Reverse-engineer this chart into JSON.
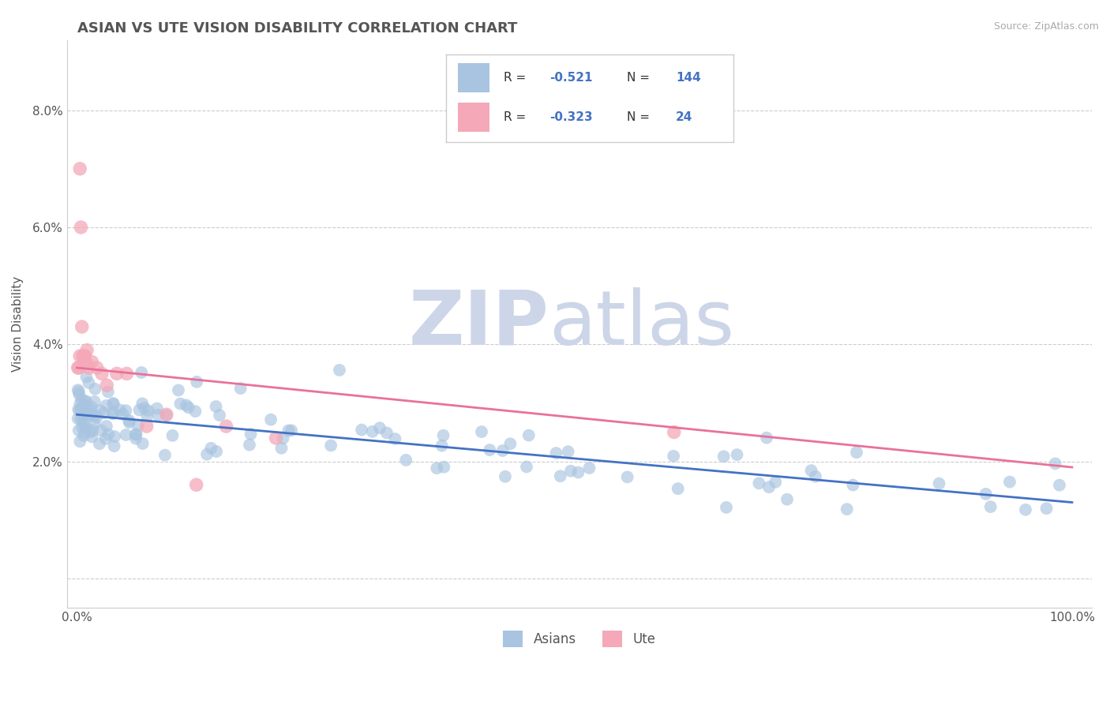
{
  "title": "ASIAN VS UTE VISION DISABILITY CORRELATION CHART",
  "source": "Source: ZipAtlas.com",
  "ylabel": "Vision Disability",
  "xlim": [
    -0.01,
    1.02
  ],
  "ylim": [
    -0.005,
    0.092
  ],
  "yticks": [
    0.0,
    0.02,
    0.04,
    0.06,
    0.08
  ],
  "ytick_labels": [
    "",
    "2.0%",
    "4.0%",
    "6.0%",
    "8.0%"
  ],
  "xtick_labels": [
    "0.0%",
    "100.0%"
  ],
  "asian_color": "#a8c4e0",
  "ute_color": "#f4a8b8",
  "asian_line_color": "#4472c4",
  "ute_line_color": "#e8729a",
  "asian_R": -0.521,
  "asian_N": 144,
  "ute_R": -0.323,
  "ute_N": 24,
  "watermark_zip": "ZIP",
  "watermark_atlas": "atlas",
  "watermark_color": "#cdd5e8",
  "title_fontsize": 13,
  "background_color": "#ffffff",
  "grid_color": "#cccccc",
  "asian_line_start_y": 0.028,
  "asian_line_end_y": 0.013,
  "ute_line_start_y": 0.036,
  "ute_line_end_y": 0.019
}
